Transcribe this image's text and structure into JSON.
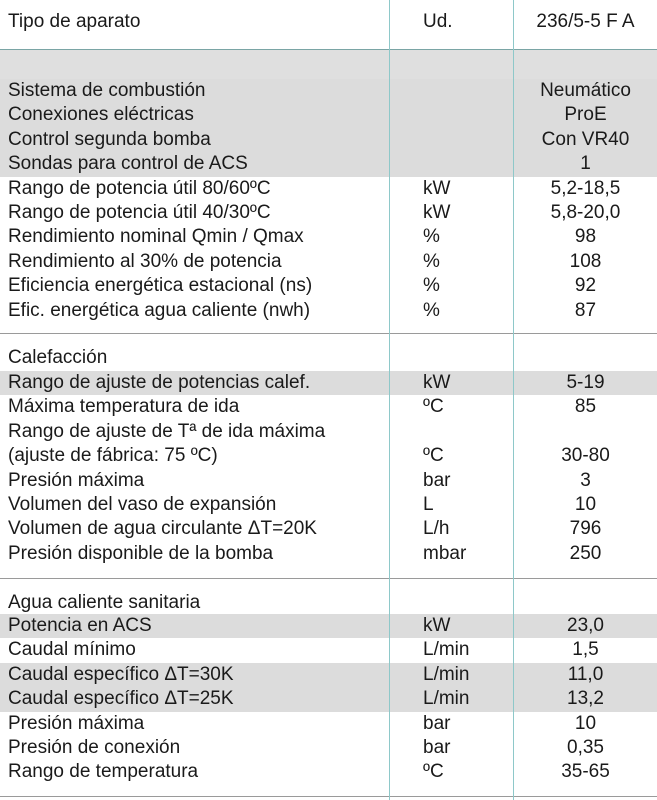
{
  "header": {
    "col1": "Tipo de aparato",
    "col2": "Ud.",
    "col3": "236/5-5 F A"
  },
  "general": [
    {
      "label": "Sistema de combustión",
      "unit": "",
      "value": "Neumático"
    },
    {
      "label": "Conexiones eléctricas",
      "unit": "",
      "value": "ProE"
    },
    {
      "label": "Control segunda bomba",
      "unit": "",
      "value": "Con VR40"
    },
    {
      "label": "Sondas para control de ACS",
      "unit": "",
      "value": "1"
    },
    {
      "label": "Rango de potencia útil 80/60ºC",
      "unit": "kW",
      "value": "5,2-18,5"
    },
    {
      "label": "Rango de potencia útil 40/30ºC",
      "unit": "kW",
      "value": "5,8-20,0"
    },
    {
      "label": "Rendimiento nominal Qmin / Qmax",
      "unit": "%",
      "value": "98"
    },
    {
      "label": "Rendimiento al 30% de potencia",
      "unit": "%",
      "value": "108"
    },
    {
      "label": "Eficiencia energética estacional (ns)",
      "unit": "%",
      "value": "92"
    },
    {
      "label": "Efic. energética agua caliente (nwh)",
      "unit": "%",
      "value": "87"
    }
  ],
  "calefaccion": {
    "title": "Calefacción",
    "rows": [
      {
        "label": "Rango de ajuste de potencias calef.",
        "unit": "kW",
        "value": "5-19"
      },
      {
        "label": "Máxima temperatura de ida",
        "unit": "ºC",
        "value": "85"
      },
      {
        "label": "Rango de ajuste de Tª de ida máxima",
        "unit": "",
        "value": ""
      },
      {
        "label": "(ajuste de fábrica: 75 ºC)",
        "unit": "ºC",
        "value": "30-80"
      },
      {
        "label": "Presión máxima",
        "unit": "bar",
        "value": "3"
      },
      {
        "label": "Volumen del vaso de expansión",
        "unit": "L",
        "value": "10"
      },
      {
        "label": "Volumen de agua circulante ΔT=20K",
        "unit": "L/h",
        "value": "796"
      },
      {
        "label": "Presión disponible de la bomba",
        "unit": "mbar",
        "value": "250"
      }
    ]
  },
  "acs": {
    "title": "Agua caliente sanitaria",
    "rows": [
      {
        "label": "Potencia en ACS",
        "unit": "kW",
        "value": "23,0"
      },
      {
        "label": "Caudal mínimo",
        "unit": "L/min",
        "value": "1,5"
      },
      {
        "label": "Caudal específico ΔT=30K",
        "unit": "L/min",
        "value": "11,0"
      },
      {
        "label": "Caudal específico ΔT=25K",
        "unit": "L/min",
        "value": "13,2"
      },
      {
        "label": "Presión máxima",
        "unit": "bar",
        "value": "10"
      },
      {
        "label": "Presión de conexión",
        "unit": "bar",
        "value": "0,35"
      },
      {
        "label": "Rango de temperatura",
        "unit": "ºC",
        "value": "35-65"
      }
    ]
  },
  "colors": {
    "grey_band": "#dcdcdc",
    "column_line": "#8ec8c9",
    "separator": "#9a9a9a"
  }
}
